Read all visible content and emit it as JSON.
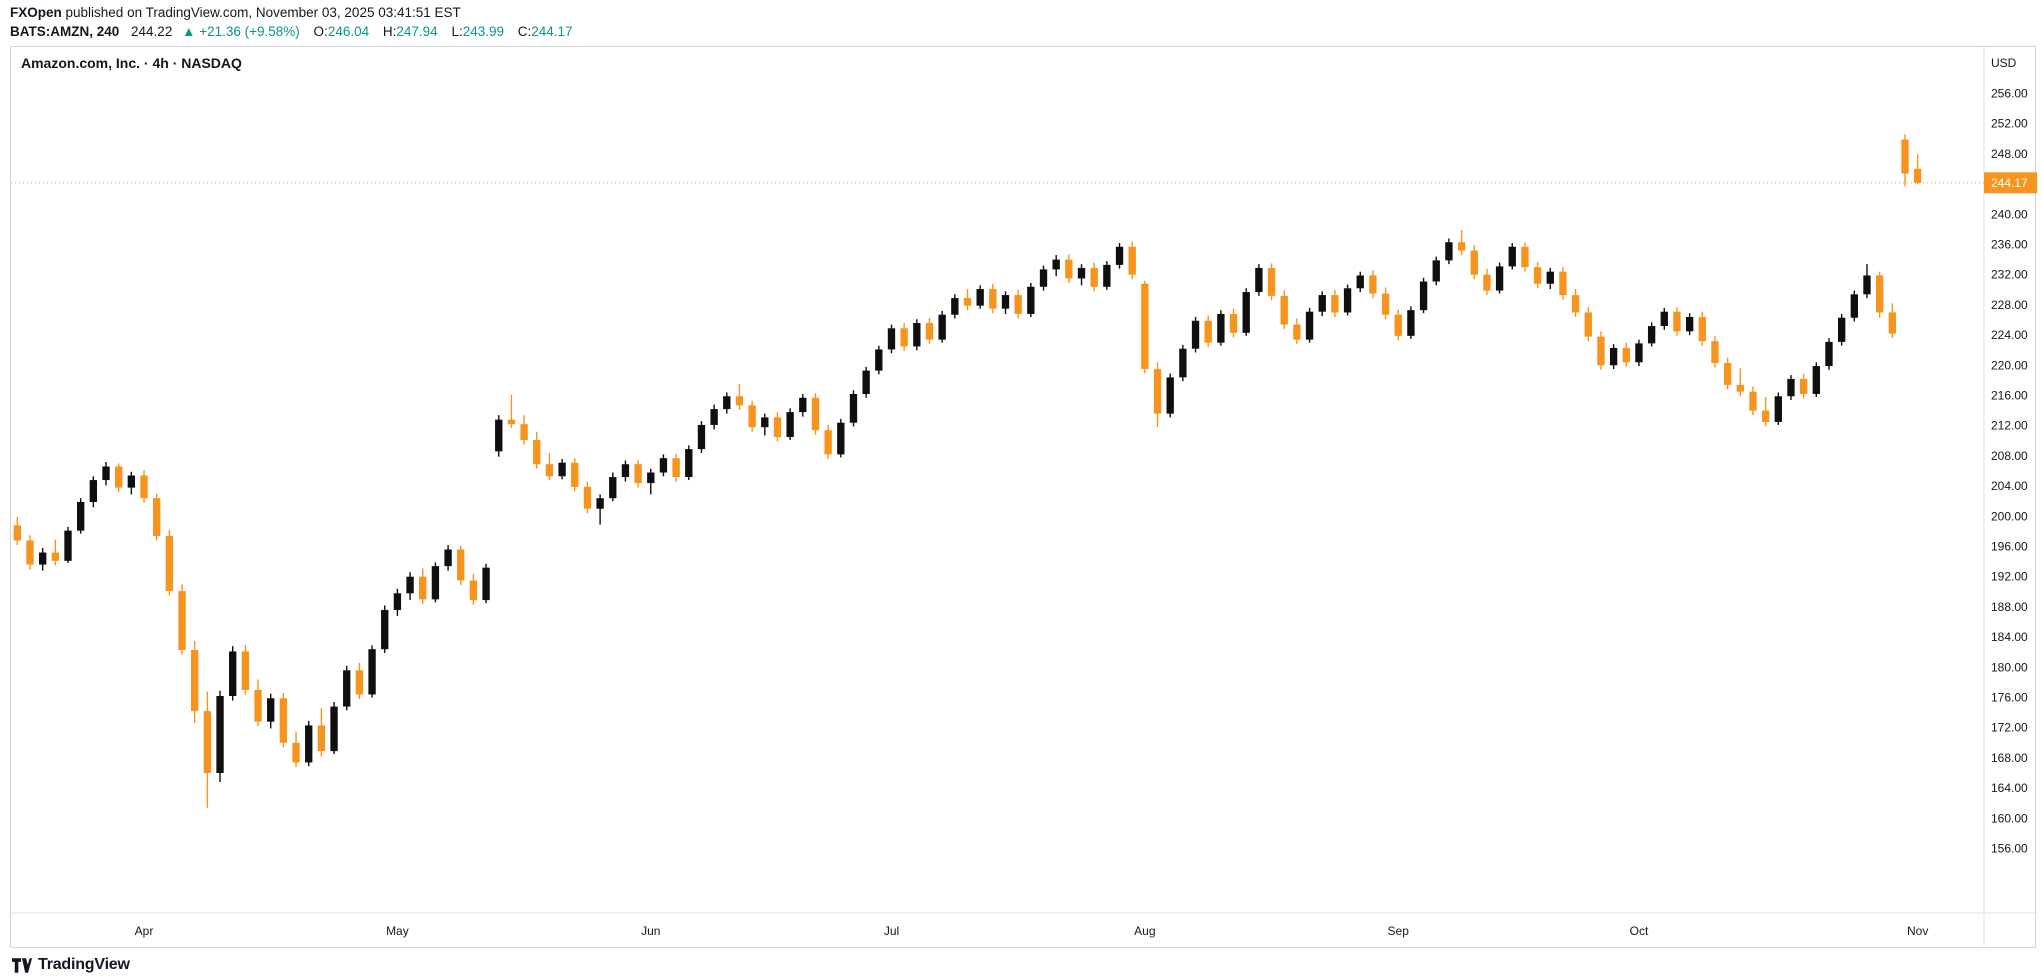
{
  "header": {
    "publisher": "FXOpen",
    "publish_info": " published on TradingView.com, November 03, 2025 03:41:51 EST",
    "symbol": "BATS:AMZN, 240",
    "last": "244.22",
    "change": "▲ +21.36 (+9.58%)",
    "o_label": "O:",
    "o_value": "246.04",
    "h_label": "H:",
    "h_value": "247.94",
    "l_label": "L:",
    "l_value": "243.99",
    "c_label": "C:",
    "c_value": "244.17"
  },
  "chart": {
    "title": "Amazon.com, Inc. · 4h · NASDAQ"
  },
  "footer": {
    "logo_text": "TradingView"
  },
  "chart_data": {
    "type": "candlestick",
    "symbol": "BATS:AMZN",
    "interval": "240",
    "exchange": "NASDAQ",
    "title": "Amazon.com, Inc. · 4h · NASDAQ",
    "currency_label": "USD",
    "last_price": 244.17,
    "last_price_label": "244.17",
    "colors": {
      "up": "#0f0f0f",
      "down": "#f7941d",
      "accent_green": "#089981",
      "axis_line": "#e0e3eb",
      "label_text": "#131722",
      "badge_text": "#ffffff"
    },
    "y_axis": {
      "currency": "USD",
      "min": 156,
      "max": 256,
      "step": 4
    },
    "x_axis": {
      "months": [
        "Apr",
        "May",
        "Jun",
        "Jul",
        "Aug",
        "Sep",
        "Oct",
        "Nov"
      ],
      "month_indices": [
        10,
        30,
        50,
        69,
        89,
        109,
        128,
        150
      ]
    },
    "candles": [
      [
        198.8,
        199.9,
        196.2,
        196.8
      ],
      [
        196.8,
        197.5,
        192.9,
        193.6
      ],
      [
        193.6,
        195.8,
        192.8,
        195.2
      ],
      [
        195.2,
        196.9,
        193.5,
        194.1
      ],
      [
        194.1,
        198.6,
        193.8,
        198.1
      ],
      [
        198.1,
        202.4,
        197.7,
        201.9
      ],
      [
        201.9,
        205.3,
        201.2,
        204.8
      ],
      [
        204.8,
        207.2,
        204.1,
        206.6
      ],
      [
        206.6,
        207.0,
        203.2,
        203.8
      ],
      [
        203.8,
        205.9,
        202.9,
        205.4
      ],
      [
        205.4,
        206.1,
        201.8,
        202.4
      ],
      [
        202.4,
        203.0,
        196.8,
        197.4
      ],
      [
        197.4,
        198.2,
        189.5,
        190.1
      ],
      [
        190.1,
        191.0,
        181.7,
        182.3
      ],
      [
        182.3,
        183.5,
        172.6,
        174.2
      ],
      [
        174.2,
        176.8,
        161.4,
        166.0
      ],
      [
        166.0,
        176.9,
        164.8,
        176.2
      ],
      [
        176.2,
        182.8,
        175.6,
        182.1
      ],
      [
        182.1,
        183.0,
        176.4,
        177.0
      ],
      [
        177.0,
        178.4,
        172.2,
        172.8
      ],
      [
        172.8,
        176.5,
        171.9,
        175.9
      ],
      [
        175.9,
        176.6,
        169.4,
        170.0
      ],
      [
        170.0,
        171.5,
        166.8,
        167.4
      ],
      [
        167.4,
        172.9,
        166.9,
        172.3
      ],
      [
        172.3,
        174.6,
        168.2,
        168.9
      ],
      [
        168.9,
        175.4,
        168.5,
        174.8
      ],
      [
        174.8,
        180.2,
        174.3,
        179.6
      ],
      [
        179.6,
        180.6,
        175.8,
        176.4
      ],
      [
        176.4,
        182.9,
        176.0,
        182.4
      ],
      [
        182.4,
        188.2,
        181.9,
        187.6
      ],
      [
        187.6,
        190.4,
        186.8,
        189.8
      ],
      [
        189.8,
        192.6,
        188.9,
        192.0
      ],
      [
        192.0,
        193.1,
        188.4,
        189.0
      ],
      [
        189.0,
        193.9,
        188.6,
        193.4
      ],
      [
        193.4,
        196.2,
        192.8,
        195.6
      ],
      [
        195.6,
        196.1,
        190.9,
        191.5
      ],
      [
        191.5,
        192.4,
        188.3,
        188.9
      ],
      [
        188.9,
        193.7,
        188.5,
        193.2
      ],
      [
        208.6,
        213.4,
        207.9,
        212.8
      ],
      [
        212.8,
        216.1,
        211.7,
        212.2
      ],
      [
        212.2,
        213.4,
        209.5,
        210.1
      ],
      [
        210.1,
        211.2,
        206.3,
        206.9
      ],
      [
        206.9,
        208.4,
        204.8,
        205.3
      ],
      [
        205.3,
        207.6,
        204.9,
        207.1
      ],
      [
        207.1,
        207.7,
        203.3,
        203.9
      ],
      [
        203.9,
        204.6,
        200.4,
        201.0
      ],
      [
        201.0,
        202.9,
        198.9,
        202.4
      ],
      [
        202.4,
        205.8,
        202.0,
        205.2
      ],
      [
        205.2,
        207.4,
        204.6,
        206.9
      ],
      [
        206.9,
        207.5,
        203.8,
        204.4
      ],
      [
        204.4,
        206.3,
        202.9,
        205.8
      ],
      [
        205.8,
        208.2,
        205.3,
        207.7
      ],
      [
        207.7,
        208.3,
        204.6,
        205.2
      ],
      [
        205.2,
        209.4,
        204.8,
        208.9
      ],
      [
        208.9,
        212.6,
        208.4,
        212.1
      ],
      [
        212.1,
        214.8,
        211.5,
        214.2
      ],
      [
        214.2,
        216.4,
        213.6,
        215.9
      ],
      [
        215.9,
        217.5,
        214.1,
        214.7
      ],
      [
        214.7,
        215.3,
        211.2,
        211.8
      ],
      [
        211.8,
        213.6,
        210.7,
        213.1
      ],
      [
        213.1,
        213.8,
        209.9,
        210.5
      ],
      [
        210.5,
        214.3,
        210.1,
        213.8
      ],
      [
        213.8,
        216.2,
        213.2,
        215.7
      ],
      [
        215.7,
        216.3,
        210.8,
        211.4
      ],
      [
        211.4,
        212.1,
        207.6,
        208.2
      ],
      [
        208.2,
        212.9,
        207.8,
        212.4
      ],
      [
        212.4,
        216.7,
        211.9,
        216.2
      ],
      [
        216.2,
        219.8,
        215.7,
        219.3
      ],
      [
        219.3,
        222.6,
        218.8,
        222.1
      ],
      [
        222.1,
        225.4,
        221.6,
        224.9
      ],
      [
        224.9,
        225.6,
        221.9,
        222.5
      ],
      [
        222.5,
        226.1,
        222.0,
        225.6
      ],
      [
        225.6,
        226.3,
        222.8,
        223.4
      ],
      [
        223.4,
        227.2,
        223.0,
        226.7
      ],
      [
        226.7,
        229.4,
        226.2,
        228.9
      ],
      [
        228.9,
        230.1,
        227.3,
        227.9
      ],
      [
        227.9,
        230.6,
        227.5,
        230.1
      ],
      [
        230.1,
        230.8,
        226.9,
        227.5
      ],
      [
        227.5,
        229.8,
        226.8,
        229.3
      ],
      [
        229.3,
        230.0,
        226.2,
        226.8
      ],
      [
        226.8,
        230.9,
        226.4,
        230.4
      ],
      [
        230.4,
        233.2,
        229.9,
        232.7
      ],
      [
        232.7,
        234.6,
        231.8,
        234.0
      ],
      [
        234.0,
        234.7,
        230.9,
        231.5
      ],
      [
        231.5,
        233.4,
        230.6,
        232.9
      ],
      [
        232.9,
        233.6,
        229.8,
        230.4
      ],
      [
        230.4,
        233.8,
        230.0,
        233.3
      ],
      [
        233.3,
        236.2,
        232.8,
        235.7
      ],
      [
        235.7,
        236.4,
        231.4,
        232.0
      ],
      [
        230.8,
        231.2,
        218.9,
        219.5
      ],
      [
        219.5,
        220.4,
        211.8,
        213.6
      ],
      [
        213.6,
        218.9,
        213.1,
        218.4
      ],
      [
        218.4,
        222.7,
        217.9,
        222.2
      ],
      [
        222.2,
        226.4,
        221.7,
        225.9
      ],
      [
        225.9,
        226.6,
        222.4,
        223.0
      ],
      [
        223.0,
        227.3,
        222.6,
        226.8
      ],
      [
        226.8,
        227.5,
        223.7,
        224.3
      ],
      [
        224.3,
        230.2,
        223.9,
        229.7
      ],
      [
        229.7,
        233.4,
        229.2,
        232.9
      ],
      [
        232.9,
        233.5,
        228.6,
        229.2
      ],
      [
        229.2,
        229.9,
        224.8,
        225.4
      ],
      [
        225.4,
        226.2,
        222.8,
        223.4
      ],
      [
        223.4,
        227.6,
        223.0,
        227.1
      ],
      [
        227.1,
        229.8,
        226.5,
        229.3
      ],
      [
        229.3,
        230.0,
        226.4,
        227.0
      ],
      [
        227.0,
        230.7,
        226.6,
        230.2
      ],
      [
        230.2,
        232.4,
        229.7,
        231.9
      ],
      [
        231.9,
        232.6,
        228.9,
        229.5
      ],
      [
        229.5,
        230.3,
        226.1,
        226.7
      ],
      [
        226.7,
        227.4,
        223.3,
        223.9
      ],
      [
        223.9,
        227.8,
        223.5,
        227.3
      ],
      [
        227.3,
        231.6,
        226.9,
        231.1
      ],
      [
        231.1,
        234.4,
        230.6,
        233.9
      ],
      [
        233.9,
        236.8,
        233.4,
        236.3
      ],
      [
        236.3,
        237.9,
        234.6,
        235.2
      ],
      [
        235.2,
        235.9,
        231.4,
        232.0
      ],
      [
        232.0,
        232.8,
        229.3,
        229.9
      ],
      [
        229.9,
        233.6,
        229.5,
        233.1
      ],
      [
        233.1,
        236.2,
        232.7,
        235.7
      ],
      [
        235.7,
        236.3,
        232.4,
        233.0
      ],
      [
        233.0,
        233.7,
        230.2,
        230.8
      ],
      [
        230.8,
        232.9,
        230.1,
        232.4
      ],
      [
        232.4,
        233.0,
        228.7,
        229.3
      ],
      [
        229.3,
        230.1,
        226.4,
        227.0
      ],
      [
        227.0,
        227.7,
        223.2,
        223.8
      ],
      [
        223.8,
        224.5,
        219.4,
        220.0
      ],
      [
        220.0,
        222.8,
        219.5,
        222.3
      ],
      [
        222.3,
        223.0,
        219.8,
        220.4
      ],
      [
        220.4,
        223.4,
        219.9,
        222.9
      ],
      [
        222.9,
        225.7,
        222.5,
        225.2
      ],
      [
        225.2,
        227.6,
        224.7,
        227.1
      ],
      [
        227.1,
        227.7,
        223.9,
        224.5
      ],
      [
        224.5,
        226.9,
        224.0,
        226.4
      ],
      [
        226.4,
        227.1,
        222.6,
        223.2
      ],
      [
        223.2,
        223.9,
        219.7,
        220.3
      ],
      [
        220.3,
        221.0,
        216.8,
        217.4
      ],
      [
        217.4,
        219.6,
        215.9,
        216.5
      ],
      [
        216.5,
        217.2,
        213.4,
        214.0
      ],
      [
        214.0,
        215.8,
        211.9,
        212.5
      ],
      [
        212.5,
        216.4,
        212.1,
        215.9
      ],
      [
        215.9,
        218.7,
        215.4,
        218.2
      ],
      [
        218.2,
        218.9,
        215.6,
        216.2
      ],
      [
        216.2,
        220.4,
        215.8,
        219.9
      ],
      [
        219.9,
        223.6,
        219.4,
        223.1
      ],
      [
        223.1,
        226.8,
        222.6,
        226.3
      ],
      [
        226.3,
        229.9,
        225.8,
        229.4
      ],
      [
        229.4,
        233.4,
        228.9,
        231.9
      ],
      [
        231.9,
        232.4,
        226.3,
        227.0
      ],
      [
        227.0,
        228.2,
        223.6,
        224.2
      ],
      [
        249.9,
        250.6,
        243.7,
        245.4
      ],
      [
        246.04,
        247.94,
        243.99,
        244.17
      ]
    ]
  }
}
